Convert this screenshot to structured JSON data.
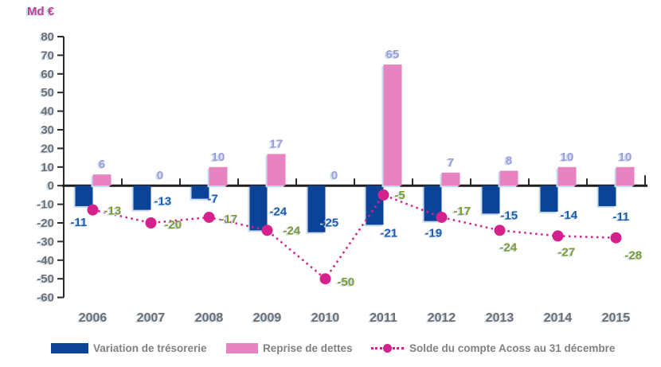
{
  "chart_data": {
    "type": "bar",
    "title": "",
    "unit_label": "Md €",
    "xlabel": "",
    "ylabel": "Md €",
    "categories": [
      "2006",
      "2007",
      "2008",
      "2009",
      "2010",
      "2011",
      "2012",
      "2013",
      "2014",
      "2015"
    ],
    "series": [
      {
        "name": "Variation de trésorerie",
        "type": "bar",
        "color": "#0B4399",
        "label_color": "#1E5CAC",
        "values": [
          -11,
          -13,
          -7,
          -24,
          -25,
          -21,
          -19,
          -15,
          -14,
          -11
        ]
      },
      {
        "name": "Reprise de dettes",
        "type": "bar",
        "color": "#E783C0",
        "label_color": "#9B9CD9",
        "values": [
          6,
          0,
          10,
          17,
          0,
          65,
          7,
          8,
          10,
          10
        ]
      },
      {
        "name": "Solde du compte Acoss au 31 décembre",
        "type": "line-dotted",
        "color": "#D4218C",
        "label_color": "#7E9A32",
        "values": [
          -13,
          -20,
          -17,
          -24,
          -50,
          -5,
          -17,
          -24,
          -27,
          -28
        ]
      }
    ],
    "ylim": [
      -60,
      80
    ],
    "ytick_step": 10,
    "grid": false,
    "legend_position": "bottom",
    "colors": {
      "axis": "#2B2B2B",
      "zero_line": "#1F1F1F",
      "tick_label": "#6E6E6E",
      "shadow": "#C9DCEF",
      "unit_label": "#C2408C",
      "legend_text": "#808080",
      "background": "#FFFFFF"
    },
    "label_offsets": {
      "variation": [
        [
          -28,
          25
        ],
        [
          4,
          -6
        ],
        [
          -2,
          5
        ],
        [
          3,
          -19
        ],
        [
          -5,
          -7
        ],
        [
          -4,
          15
        ],
        [
          -21,
          20
        ],
        [
          1,
          7
        ],
        [
          3,
          9
        ],
        [
          -4,
          18
        ]
      ],
      "solde": [
        [
          14,
          6
        ],
        [
          17,
          7
        ],
        [
          14,
          7
        ],
        [
          20,
          5
        ],
        [
          15,
          9
        ],
        [
          14,
          5
        ],
        [
          15,
          -3
        ],
        [
          0,
          26
        ],
        [
          0,
          25
        ],
        [
          11,
          27
        ]
      ]
    }
  }
}
